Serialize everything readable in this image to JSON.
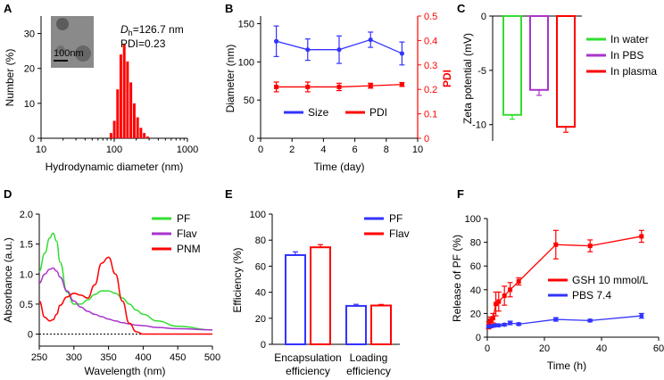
{
  "panels": {
    "A": {
      "label": "A",
      "chart_data": {
        "type": "bar",
        "xscale": "log",
        "xlim": [
          10,
          1000
        ],
        "ylim": [
          0,
          35
        ],
        "xticks": [
          10,
          100,
          1000
        ],
        "xtick_labels": [
          "10",
          "100",
          "1000"
        ],
        "yticks": [
          0,
          10,
          20,
          30
        ],
        "ytick_labels": [
          "0",
          "10",
          "20",
          "30"
        ],
        "xlabel": "Hydrodynamic diameter (nm)",
        "ylabel": "Number (%)",
        "color": "#ff0000",
        "bins": [
          {
            "d": 91,
            "v": 1.5
          },
          {
            "d": 101,
            "v": 5
          },
          {
            "d": 112,
            "v": 14
          },
          {
            "d": 124,
            "v": 24
          },
          {
            "d": 138,
            "v": 27
          },
          {
            "d": 153,
            "v": 22
          },
          {
            "d": 170,
            "v": 16
          },
          {
            "d": 189,
            "v": 10
          },
          {
            "d": 210,
            "v": 6
          },
          {
            "d": 233,
            "v": 3
          },
          {
            "d": 259,
            "v": 1.5
          },
          {
            "d": 288,
            "v": 0.5
          }
        ],
        "annot_prefix": "D",
        "annot_sub": "h",
        "annot_value": "=126.7 nm",
        "annot_pdi": "PDI=0.23",
        "inset_scale": "100nm"
      }
    },
    "B": {
      "label": "B",
      "chart_data": {
        "type": "line",
        "x": [
          1,
          3,
          5,
          7,
          9
        ],
        "xlim": [
          0,
          10
        ],
        "xticks": [
          0,
          2,
          4,
          6,
          8,
          10
        ],
        "xlabel": "Time (day)",
        "ylabel": "Diameter (nm)",
        "ylim": [
          0,
          160
        ],
        "yticks": [
          0,
          50,
          100,
          150
        ],
        "y2label": "PDI",
        "y2lim": [
          0,
          0.5
        ],
        "y2ticks": [
          "0",
          "0.1",
          "0.2",
          "0.3",
          "0.4",
          "0.5"
        ],
        "series": [
          {
            "name": "Size",
            "axis": "left",
            "color": "#3333ff",
            "values": [
              127,
              116,
              116,
              129,
              111
            ],
            "err": [
              20,
              14,
              18,
              10,
              15
            ]
          },
          {
            "name": "PDI",
            "axis": "right",
            "color": "#ff0000",
            "values": [
              0.21,
              0.21,
              0.21,
              0.215,
              0.22
            ],
            "err": [
              0.02,
              0.02,
              0.015,
              0.01,
              0.008
            ]
          }
        ]
      }
    },
    "C": {
      "label": "C",
      "chart_data": {
        "type": "bar",
        "ylabel": "Zeta potential (mV)",
        "ylim": [
          -11.5,
          0
        ],
        "yticks": [
          "0",
          "-5",
          "-10"
        ],
        "series": [
          {
            "name": "In water",
            "color": "#33dd33",
            "value": -9.1,
            "err": 0.4
          },
          {
            "name": "In PBS",
            "color": "#aa33cc",
            "value": -6.8,
            "err": 0.5
          },
          {
            "name": "In plasma",
            "color": "#ff0000",
            "value": -10.2,
            "err": 0.5
          }
        ]
      }
    },
    "D": {
      "label": "D",
      "chart_data": {
        "type": "line",
        "xlim": [
          250,
          500
        ],
        "xticks": [
          250,
          300,
          350,
          400,
          450,
          500
        ],
        "ylim": [
          -0.2,
          2.0
        ],
        "yticks": [
          "0",
          "0.5",
          "1.0",
          "1.5",
          "2.0"
        ],
        "yticks_v": [
          0,
          0.5,
          1.0,
          1.5,
          2.0
        ],
        "xlabel": "Wavelength (nm)",
        "ylabel": "Absorbance (a.u.)",
        "x": [
          250,
          258,
          265,
          270,
          275,
          280,
          290,
          300,
          310,
          320,
          330,
          340,
          350,
          360,
          370,
          380,
          390,
          400,
          420,
          450,
          500
        ],
        "series": [
          {
            "name": "PF",
            "color": "#33dd33",
            "values": [
              1.05,
              1.35,
              1.6,
              1.68,
              1.55,
              1.2,
              0.7,
              0.5,
              0.5,
              0.57,
              0.66,
              0.72,
              0.72,
              0.68,
              0.6,
              0.5,
              0.4,
              0.33,
              0.22,
              0.13,
              0.07
            ]
          },
          {
            "name": "Flav",
            "color": "#aa33cc",
            "values": [
              0.85,
              1.0,
              1.08,
              1.1,
              1.05,
              0.95,
              0.72,
              0.55,
              0.45,
              0.38,
              0.33,
              0.29,
              0.25,
              0.22,
              0.19,
              0.17,
              0.15,
              0.14,
              0.11,
              0.09,
              0.07
            ]
          },
          {
            "name": "PNM",
            "color": "#ff0000",
            "values": [
              0.55,
              0.28,
              0.22,
              0.24,
              0.33,
              0.48,
              0.62,
              0.68,
              0.65,
              0.6,
              0.82,
              1.18,
              1.28,
              1.0,
              0.55,
              0.18,
              0.04,
              0.0,
              0.0,
              0.0,
              0.0
            ]
          }
        ],
        "baseline": 0
      }
    },
    "E": {
      "label": "E",
      "chart_data": {
        "type": "bar",
        "categories": [
          "Encapsulation efficiency",
          "Loading efficiency"
        ],
        "category_lines": [
          [
            "Encapsulation",
            "efficiency"
          ],
          [
            "Loading",
            "efficiency"
          ]
        ],
        "ylabel": "Efficiency (%)",
        "ylim": [
          0,
          100
        ],
        "yticks": [
          0,
          20,
          40,
          60,
          80,
          100
        ],
        "series": [
          {
            "name": "PF",
            "color": "#3333ff",
            "values": [
              68.5,
              29.5
            ],
            "err": [
              2.5,
              1.2
            ]
          },
          {
            "name": "Flav",
            "color": "#ff0000",
            "values": [
              74.5,
              29.8
            ],
            "err": [
              2,
              0.8
            ]
          }
        ]
      }
    },
    "F": {
      "label": "F",
      "chart_data": {
        "type": "line",
        "xlim": [
          0,
          60
        ],
        "xticks": [
          0,
          20,
          40,
          60
        ],
        "ylim": [
          0,
          100
        ],
        "yticks": [
          0,
          20,
          40,
          60,
          80,
          100
        ],
        "xlabel": "Time (h)",
        "ylabel": "Release of PF (%)",
        "series": [
          {
            "name": "GSH 10 mmol/L",
            "color": "#ff0000",
            "x": [
              0.5,
              1,
              2,
              3,
              4,
              6,
              8,
              11,
              24,
              36,
              54
            ],
            "values": [
              10,
              14,
              16,
              28,
              30,
              35,
              40,
              47,
              78,
              77,
              85
            ],
            "err": [
              3,
              3,
              4,
              10,
              8,
              8,
              6,
              3,
              12,
              5,
              5
            ]
          },
          {
            "name": "PBS  7.4",
            "color": "#3333ff",
            "x": [
              0.5,
              1,
              2,
              3,
              4,
              6,
              8,
              11,
              24,
              36,
              54
            ],
            "values": [
              9,
              9,
              9.5,
              10,
              10,
              10.5,
              12,
              11,
              15,
              14,
              18
            ],
            "err": [
              1,
              1,
              1,
              1,
              1,
              1,
              1.5,
              1,
              1.5,
              1,
              2
            ]
          }
        ]
      }
    }
  }
}
